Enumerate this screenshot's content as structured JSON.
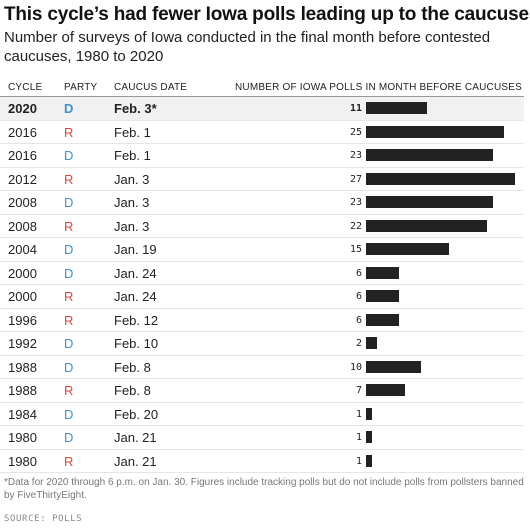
{
  "chart_data": {
    "type": "table",
    "title": "This cycle’s had fewer Iowa polls leading up to the caucuses",
    "subtitle": "Number of surveys of Iowa conducted in the final month before contested caucuses, 1980 to 2020",
    "columns": [
      "CYCLE",
      "PARTY",
      "CAUCUS DATE",
      "NUMBER OF IOWA POLLS IN MONTH BEFORE CAUCUSES"
    ],
    "rows": [
      {
        "cycle": "2020",
        "party": "D",
        "date": "Feb. 3*",
        "polls": 11,
        "highlight": true
      },
      {
        "cycle": "2016",
        "party": "R",
        "date": "Feb. 1",
        "polls": 25
      },
      {
        "cycle": "2016",
        "party": "D",
        "date": "Feb. 1",
        "polls": 23
      },
      {
        "cycle": "2012",
        "party": "R",
        "date": "Jan. 3",
        "polls": 27
      },
      {
        "cycle": "2008",
        "party": "D",
        "date": "Jan. 3",
        "polls": 23
      },
      {
        "cycle": "2008",
        "party": "R",
        "date": "Jan. 3",
        "polls": 22
      },
      {
        "cycle": "2004",
        "party": "D",
        "date": "Jan. 19",
        "polls": 15
      },
      {
        "cycle": "2000",
        "party": "D",
        "date": "Jan. 24",
        "polls": 6
      },
      {
        "cycle": "2000",
        "party": "R",
        "date": "Jan. 24",
        "polls": 6
      },
      {
        "cycle": "1996",
        "party": "R",
        "date": "Feb. 12",
        "polls": 6
      },
      {
        "cycle": "1992",
        "party": "D",
        "date": "Feb. 10",
        "polls": 2
      },
      {
        "cycle": "1988",
        "party": "D",
        "date": "Feb. 8",
        "polls": 10
      },
      {
        "cycle": "1988",
        "party": "R",
        "date": "Feb. 8",
        "polls": 7
      },
      {
        "cycle": "1984",
        "party": "D",
        "date": "Feb. 20",
        "polls": 1
      },
      {
        "cycle": "1980",
        "party": "D",
        "date": "Jan. 21",
        "polls": 1
      },
      {
        "cycle": "1980",
        "party": "R",
        "date": "Jan. 21",
        "polls": 1
      }
    ],
    "xlim": [
      0,
      27
    ]
  },
  "colors": {
    "D": "#3d8fd6",
    "R": "#e0463a",
    "bar": "#222222"
  },
  "footnote": "*Data for 2020 through 6 p.m. on Jan. 30. Figures include tracking polls but do not include polls from pollsters banned by FiveThirtyEight.",
  "source": "SOURCE: POLLS"
}
